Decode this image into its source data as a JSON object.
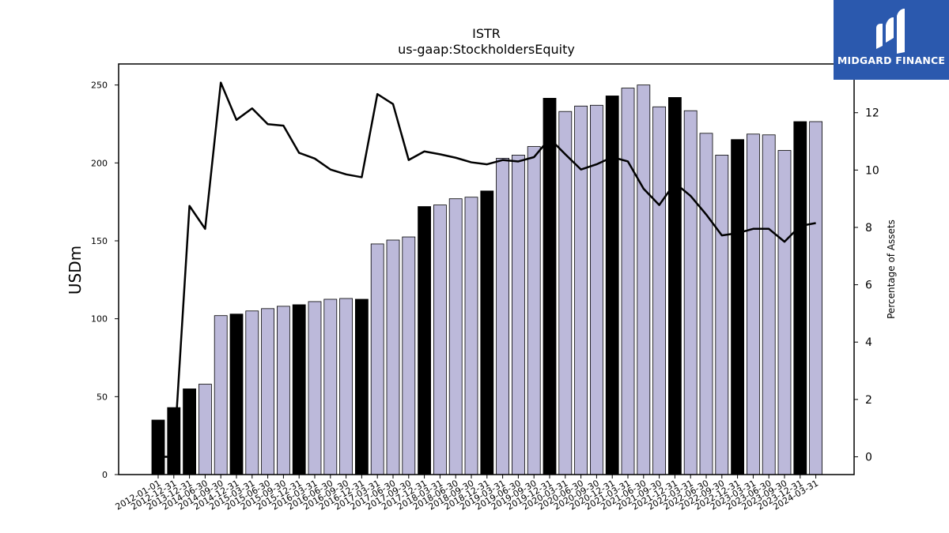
{
  "brand": {
    "name": "MIDGARD FINANCE",
    "bg_color": "#2b59ae"
  },
  "chart_data": {
    "type": "bar+line",
    "title": "ISTR",
    "subtitle": "us-gaap:StockholdersEquity",
    "ylabel": "USDm",
    "y2label": "Percentage of Assets",
    "ylim": [
      0,
      263.5
    ],
    "y2lim": [
      -0.62,
      13.7
    ],
    "yticks": [
      0,
      50,
      100,
      150,
      200,
      250
    ],
    "y2ticks": [
      0,
      2,
      4,
      6,
      8,
      10,
      12
    ],
    "grid": false,
    "colors": {
      "quarter_bar": "#bcb9da",
      "year_end_bar": "#000000",
      "line": "#000000"
    },
    "categories": [
      "2012-01-01",
      "2012-12-31",
      "2013-12-31",
      "2014-06-30",
      "2014-09-30",
      "2014-12-31",
      "2015-03-31",
      "2015-06-30",
      "2015-09-30",
      "2015-12-31",
      "2016-03-31",
      "2016-06-30",
      "2016-09-30",
      "2016-12-31",
      "2017-03-31",
      "2017-06-30",
      "2017-09-30",
      "2017-12-31",
      "2018-03-31",
      "2018-06-30",
      "2018-09-30",
      "2018-12-31",
      "2019-03-31",
      "2019-06-30",
      "2019-09-30",
      "2019-12-31",
      "2020-03-31",
      "2020-06-30",
      "2020-09-30",
      "2020-12-31",
      "2021-03-31",
      "2021-06-30",
      "2021-09-30",
      "2021-12-31",
      "2022-03-31",
      "2022-06-30",
      "2022-09-30",
      "2022-12-31",
      "2023-03-31",
      "2023-06-30",
      "2023-09-30",
      "2023-12-31",
      "2024-03-31"
    ],
    "year_end": [
      true,
      true,
      true,
      false,
      false,
      true,
      false,
      false,
      false,
      true,
      false,
      false,
      false,
      true,
      false,
      false,
      false,
      true,
      false,
      false,
      false,
      true,
      false,
      false,
      false,
      true,
      false,
      false,
      false,
      true,
      false,
      false,
      false,
      true,
      false,
      false,
      false,
      true,
      false,
      false,
      false,
      true,
      false
    ],
    "series": [
      {
        "kind": "bar",
        "values": [
          35,
          43,
          55,
          58,
          102,
          103,
          105,
          106.5,
          108,
          109,
          111,
          112.5,
          113,
          112.5,
          148,
          150.5,
          152.5,
          172,
          173,
          177,
          178,
          182,
          203,
          205,
          210.5,
          241.5,
          233,
          236.5,
          237,
          243,
          248,
          250,
          236,
          242,
          233.5,
          219,
          205,
          215,
          218.5,
          218,
          208,
          226.5,
          226.5
        ]
      },
      {
        "kind": "line",
        "axis": "right",
        "values": [
          0,
          0,
          8.75,
          7.95,
          13.05,
          11.75,
          12.15,
          11.6,
          11.55,
          10.6,
          10.4,
          10.02,
          9.85,
          9.75,
          12.65,
          12.3,
          10.35,
          10.65,
          10.55,
          10.43,
          10.27,
          10.2,
          10.35,
          10.3,
          10.45,
          11.1,
          10.55,
          10.02,
          10.2,
          10.45,
          10.3,
          9.35,
          8.78,
          9.55,
          9.1,
          8.45,
          7.72,
          7.8,
          7.95,
          7.95,
          7.5,
          8.05,
          8.15
        ]
      }
    ]
  }
}
